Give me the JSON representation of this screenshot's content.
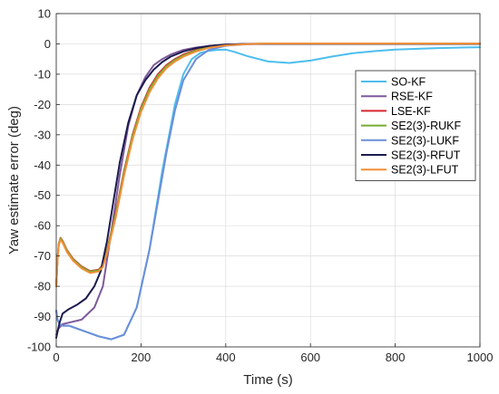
{
  "chart_data": {
    "type": "line",
    "title": "",
    "xlabel": "Time (s)",
    "ylabel": "Yaw estimate error (deg)",
    "xlim": [
      0,
      1000
    ],
    "ylim": [
      -100,
      10
    ],
    "xticks": [
      0,
      200,
      400,
      600,
      800,
      1000
    ],
    "yticks": [
      10,
      0,
      -10,
      -20,
      -30,
      -40,
      -50,
      -60,
      -70,
      -80,
      -90,
      -100
    ],
    "grid": true,
    "legend_position": "top-right",
    "series": [
      {
        "name": "SO-KF",
        "color": "#4DBEEE",
        "x": [
          0,
          3,
          8,
          15,
          30,
          60,
          100,
          130,
          160,
          190,
          220,
          250,
          280,
          300,
          320,
          340,
          360,
          380,
          400,
          420,
          450,
          500,
          550,
          600,
          650,
          700,
          750,
          800,
          900,
          1000
        ],
        "y": [
          -88,
          -91,
          -92.5,
          -93,
          -93,
          -94.5,
          -96.5,
          -97.5,
          -96,
          -87,
          -68,
          -42,
          -20,
          -10,
          -5,
          -3,
          -2.3,
          -2,
          -1.9,
          -2.6,
          -4,
          -5.8,
          -6.3,
          -5.5,
          -4.2,
          -3.1,
          -2.4,
          -1.9,
          -1.4,
          -1.1
        ]
      },
      {
        "name": "RSE-KF",
        "color": "#7E5A9B",
        "x": [
          0,
          5,
          15,
          30,
          60,
          90,
          110,
          130,
          150,
          170,
          190,
          210,
          230,
          250,
          270,
          300,
          330,
          360,
          400,
          450,
          500,
          600,
          800,
          1000
        ],
        "y": [
          -96,
          -94,
          -92.5,
          -92,
          -91,
          -87,
          -80,
          -62,
          -43,
          -27,
          -17,
          -11,
          -7,
          -5,
          -3.5,
          -2,
          -1.2,
          -0.7,
          -0.3,
          -0.1,
          0,
          0,
          0,
          0
        ]
      },
      {
        "name": "LSE-KF",
        "color": "#D7262E",
        "x": [
          0,
          3,
          6,
          10,
          15,
          25,
          40,
          60,
          80,
          100,
          110,
          120,
          140,
          160,
          180,
          200,
          220,
          240,
          260,
          280,
          300,
          330,
          360,
          400,
          450,
          500,
          600,
          800,
          1000
        ],
        "y": [
          -80,
          -71,
          -66,
          -64,
          -65,
          -68,
          -71,
          -73.5,
          -75,
          -74.5,
          -73,
          -68,
          -56,
          -42,
          -30,
          -21,
          -14.5,
          -10,
          -7,
          -5,
          -3.5,
          -2,
          -1,
          -0.3,
          0,
          0.1,
          0.1,
          0.1,
          0.1
        ]
      },
      {
        "name": "SE2(3)-RUKF",
        "color": "#77AC30",
        "x": [
          0,
          3,
          6,
          10,
          15,
          25,
          40,
          60,
          80,
          100,
          110,
          120,
          140,
          160,
          180,
          200,
          220,
          240,
          260,
          280,
          300,
          330,
          360,
          400,
          450,
          500,
          600,
          800,
          1000
        ],
        "y": [
          -80,
          -71,
          -66,
          -64.2,
          -65.2,
          -68.2,
          -71.2,
          -73.7,
          -75.2,
          -74.7,
          -73.2,
          -68.3,
          -56.5,
          -42.5,
          -30.5,
          -21.5,
          -15,
          -10.5,
          -7.4,
          -5.3,
          -3.8,
          -2.2,
          -1.1,
          -0.4,
          0,
          0.1,
          0.1,
          0.1,
          0.1
        ]
      },
      {
        "name": "SE2(3)-LUKF",
        "color": "#6C8ED8",
        "x": [
          0,
          3,
          8,
          15,
          30,
          60,
          100,
          130,
          160,
          190,
          220,
          240,
          260,
          280,
          300,
          330,
          360,
          400,
          450,
          500,
          600,
          800,
          1000
        ],
        "y": [
          -88,
          -91,
          -92.5,
          -93,
          -93,
          -94.5,
          -96.5,
          -97.5,
          -96,
          -87,
          -68,
          -52,
          -36,
          -22,
          -12,
          -5,
          -2,
          -0.6,
          -0.1,
          0,
          0,
          0,
          0
        ]
      },
      {
        "name": "SE2(3)-RFUT",
        "color": "#1B1B4F",
        "x": [
          0,
          3,
          8,
          15,
          30,
          50,
          70,
          90,
          105,
          120,
          135,
          150,
          170,
          190,
          210,
          230,
          250,
          270,
          300,
          330,
          360,
          400,
          450,
          500,
          600,
          800,
          1000
        ],
        "y": [
          -97,
          -95,
          -92,
          -89,
          -87.5,
          -86,
          -84,
          -80,
          -75,
          -65,
          -52,
          -39,
          -26,
          -17,
          -12,
          -8.5,
          -6,
          -4.2,
          -2.5,
          -1.4,
          -0.7,
          -0.2,
          0,
          0,
          0,
          0,
          0
        ]
      },
      {
        "name": "SE2(3)-LFUT",
        "color": "#F28E36",
        "x": [
          0,
          3,
          6,
          10,
          15,
          25,
          40,
          60,
          80,
          100,
          110,
          120,
          140,
          160,
          180,
          200,
          220,
          240,
          260,
          280,
          300,
          330,
          360,
          400,
          450,
          500,
          600,
          800,
          1000
        ],
        "y": [
          -80,
          -71.3,
          -66.4,
          -64.6,
          -65.6,
          -68.6,
          -71.6,
          -74.1,
          -75.6,
          -75.1,
          -73.6,
          -69,
          -57.5,
          -43.5,
          -31.5,
          -22.5,
          -16,
          -11.3,
          -8,
          -5.8,
          -4.2,
          -2.5,
          -1.3,
          -0.5,
          -0.1,
          0.1,
          0.1,
          0.1,
          0.1
        ]
      }
    ]
  }
}
